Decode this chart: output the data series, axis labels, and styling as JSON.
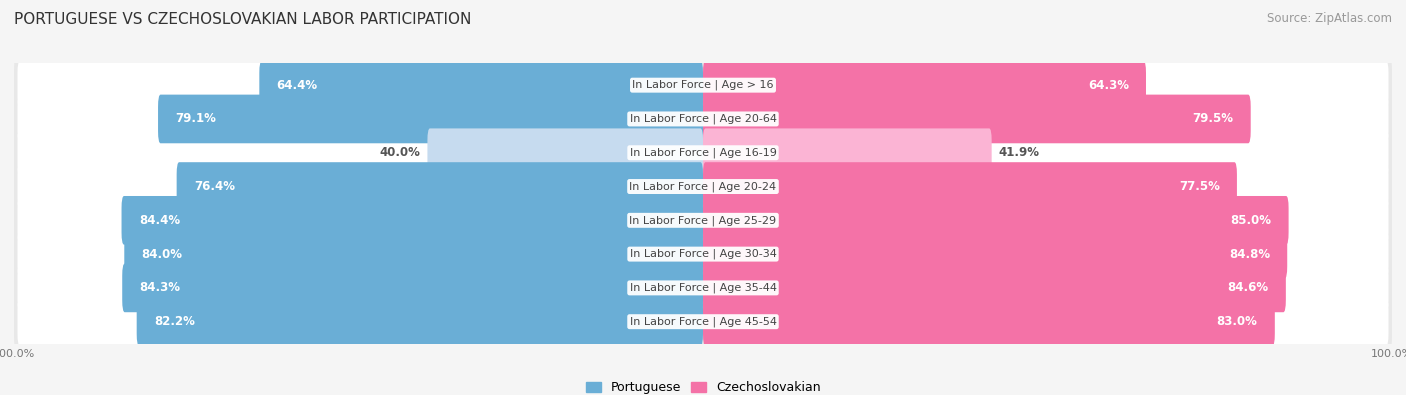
{
  "title": "PORTUGUESE VS CZECHOSLOVAKIAN LABOR PARTICIPATION",
  "source": "Source: ZipAtlas.com",
  "categories": [
    "In Labor Force | Age > 16",
    "In Labor Force | Age 20-64",
    "In Labor Force | Age 16-19",
    "In Labor Force | Age 20-24",
    "In Labor Force | Age 25-29",
    "In Labor Force | Age 30-34",
    "In Labor Force | Age 35-44",
    "In Labor Force | Age 45-54"
  ],
  "portuguese_values": [
    64.4,
    79.1,
    40.0,
    76.4,
    84.4,
    84.0,
    84.3,
    82.2
  ],
  "czechoslovakian_values": [
    64.3,
    79.5,
    41.9,
    77.5,
    85.0,
    84.8,
    84.6,
    83.0
  ],
  "max_value": 100.0,
  "portuguese_color_full": "#6aaed6",
  "portuguese_color_light": "#c6dbef",
  "czechoslovakian_color_full": "#f472a7",
  "czechoslovakian_color_light": "#fbb4d4",
  "bar_height": 0.72,
  "row_bg_color": "#e8e8e8",
  "bar_bg_color": "#ffffff",
  "label_color_dark": "#555555",
  "label_color_white": "#ffffff",
  "title_fontsize": 11,
  "source_fontsize": 8.5,
  "label_fontsize": 8.5,
  "category_fontsize": 8,
  "legend_fontsize": 9,
  "axis_label_fontsize": 8,
  "background_color": "#f5f5f5"
}
